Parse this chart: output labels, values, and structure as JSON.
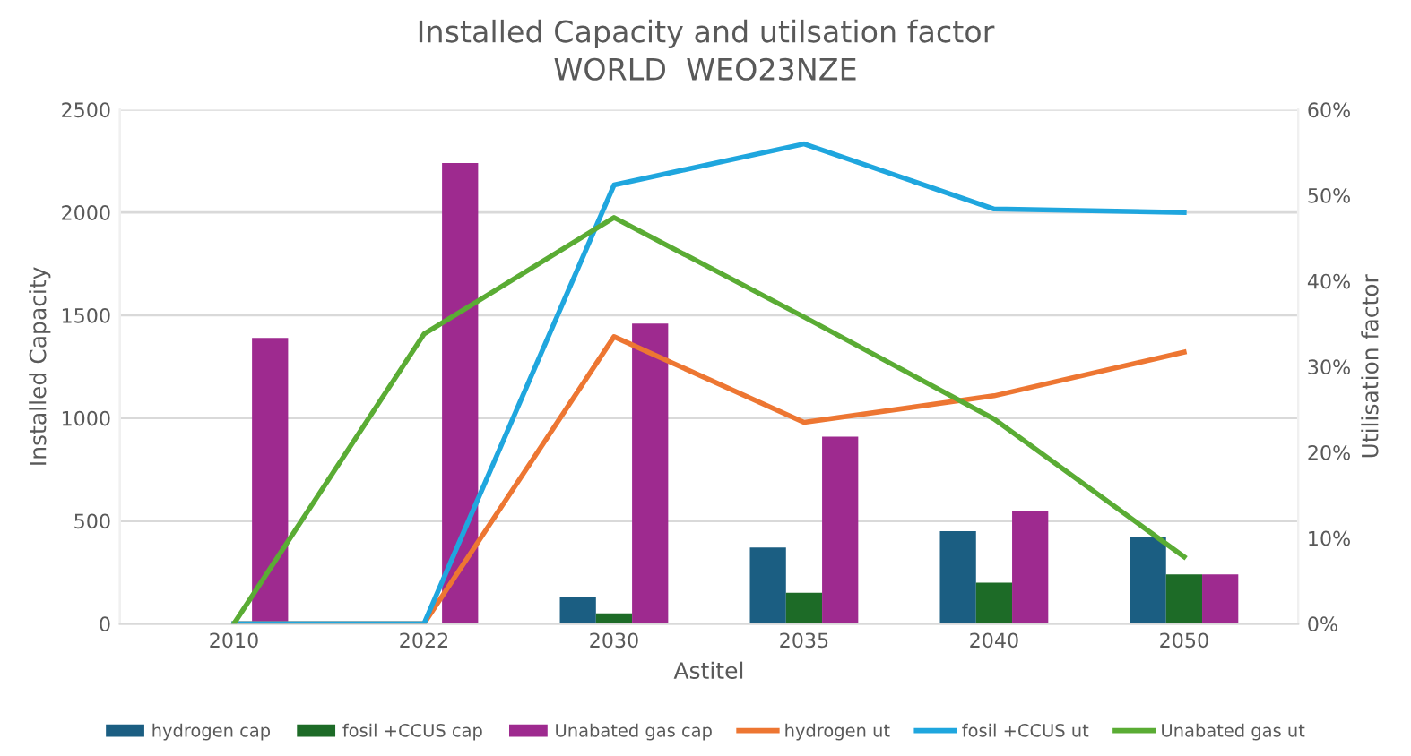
{
  "chart_data": {
    "type": "bar",
    "title": "Installed Capacity and utilsation factor",
    "subtitle": "WORLD  WEO23NZE",
    "xlabel": "Astitel",
    "ylabel": "Installed Capacity",
    "y2label": "Utilisation factor",
    "categories": [
      "2010",
      "2022",
      "2030",
      "2035",
      "2040",
      "2050"
    ],
    "series": [
      {
        "name": "hydrogen cap",
        "color": "#1b5e82",
        "values": [
          0,
          0,
          130,
          370,
          450,
          420
        ]
      },
      {
        "name": "fosil +CCUS cap",
        "color": "#1d6b27",
        "values": [
          0,
          0,
          50,
          150,
          200,
          240
        ]
      },
      {
        "name": "Unabated gas cap",
        "color": "#9e2a8f",
        "values": [
          1390,
          2240,
          1460,
          910,
          550,
          240
        ]
      },
      {
        "name": "hydrogen ut",
        "type": "line",
        "axis": "y2",
        "color": "#ed7632",
        "values": [
          0,
          0,
          33.5,
          23.5,
          26.6,
          31.7
        ]
      },
      {
        "name": "fosil +CCUS ut",
        "type": "line",
        "axis": "y2",
        "color": "#1fa6de",
        "values": [
          0,
          0,
          51.2,
          56,
          48.4,
          48
        ]
      },
      {
        "name": "Unabated gas ut",
        "type": "line",
        "axis": "y2",
        "color": "#5aac34",
        "values": [
          0,
          33.8,
          47.4,
          35.8,
          23.9,
          7.8
        ]
      }
    ],
    "ylim": [
      0,
      2500
    ],
    "yticks": [
      0,
      500,
      1000,
      1500,
      2000,
      2500
    ],
    "y2lim": [
      0,
      60
    ],
    "y2ticks": [
      {
        "value": 0,
        "label": "0%"
      },
      {
        "value": 10,
        "label": "10%"
      },
      {
        "value": 20,
        "label": "20%"
      },
      {
        "value": 30,
        "label": "30%"
      },
      {
        "value": 40,
        "label": "40%"
      },
      {
        "value": 50,
        "label": "50%"
      },
      {
        "value": 60,
        "label": "60%"
      }
    ],
    "grid": "y",
    "legend": "bottom"
  }
}
